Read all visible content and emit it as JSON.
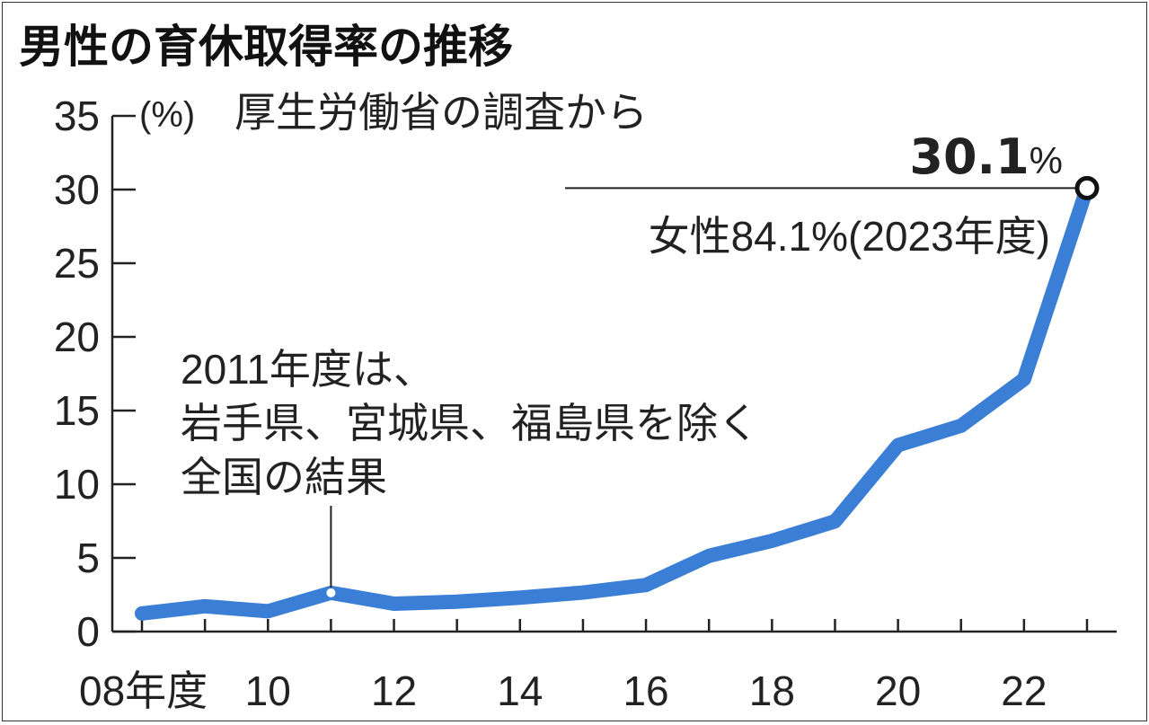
{
  "chart_data": {
    "type": "line",
    "title": "男性の育休取得率の推移",
    "unit_label": "(%)",
    "source": "厚生労働省の調査から",
    "x_unit_label": "年度",
    "x": [
      2008,
      2009,
      2010,
      2011,
      2012,
      2013,
      2014,
      2015,
      2016,
      2017,
      2018,
      2019,
      2020,
      2021,
      2022,
      2023
    ],
    "series": [
      {
        "color": "#3a7fd5",
        "values": [
          1.23,
          1.72,
          1.38,
          2.63,
          1.89,
          2.03,
          2.3,
          2.65,
          3.16,
          5.14,
          6.16,
          7.48,
          12.65,
          13.97,
          17.13,
          30.1
        ]
      }
    ],
    "ylim": [
      0,
      35
    ],
    "yticks": [
      0,
      5,
      10,
      15,
      20,
      25,
      30,
      35
    ],
    "xticks": [
      {
        "value": 2008,
        "label": "08年度"
      },
      {
        "value": 2010,
        "label": "10"
      },
      {
        "value": 2012,
        "label": "12"
      },
      {
        "value": 2014,
        "label": "14"
      },
      {
        "value": 2016,
        "label": "16"
      },
      {
        "value": 2018,
        "label": "18"
      },
      {
        "value": 2020,
        "label": "20"
      },
      {
        "value": 2022,
        "label": "22"
      }
    ],
    "annotations": [
      {
        "id": "latest",
        "x": 2023,
        "y": 30.1,
        "value": "30.1",
        "unit": "%",
        "note": "女性84.1%(2023年度)"
      },
      {
        "id": "note2011",
        "x": 2011,
        "y": 2.63,
        "lines": [
          "2011年度は、",
          "岩手県、宮城県、福島県を除く",
          "全国の結果"
        ]
      }
    ],
    "grid": false,
    "legend": "none"
  }
}
